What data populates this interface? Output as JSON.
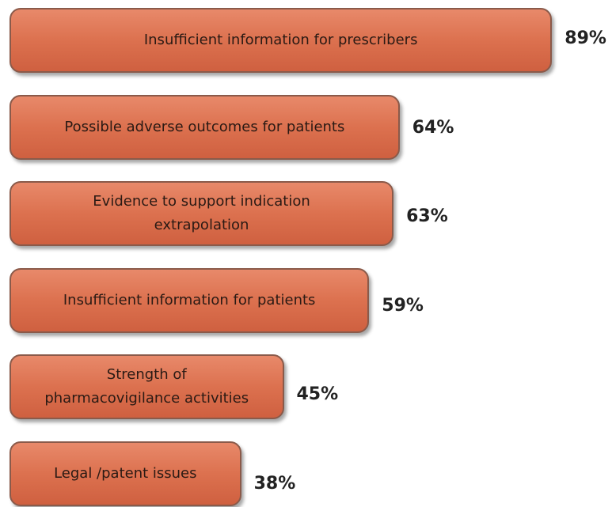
{
  "chart_data": {
    "type": "bar",
    "orientation": "horizontal",
    "categories": [
      "Insufficient information for prescribers",
      "Possible adverse outcomes for patients",
      "Evidence to support indication extrapolation",
      "Insufficient information for patients",
      "Strength of pharmacovigilance activities",
      "Legal /patent issues"
    ],
    "values": [
      89,
      64,
      63,
      59,
      45,
      38
    ],
    "value_labels": [
      "89%",
      "64%",
      "63%",
      "59%",
      "45%",
      "38%"
    ],
    "color": "#dc714f"
  }
}
